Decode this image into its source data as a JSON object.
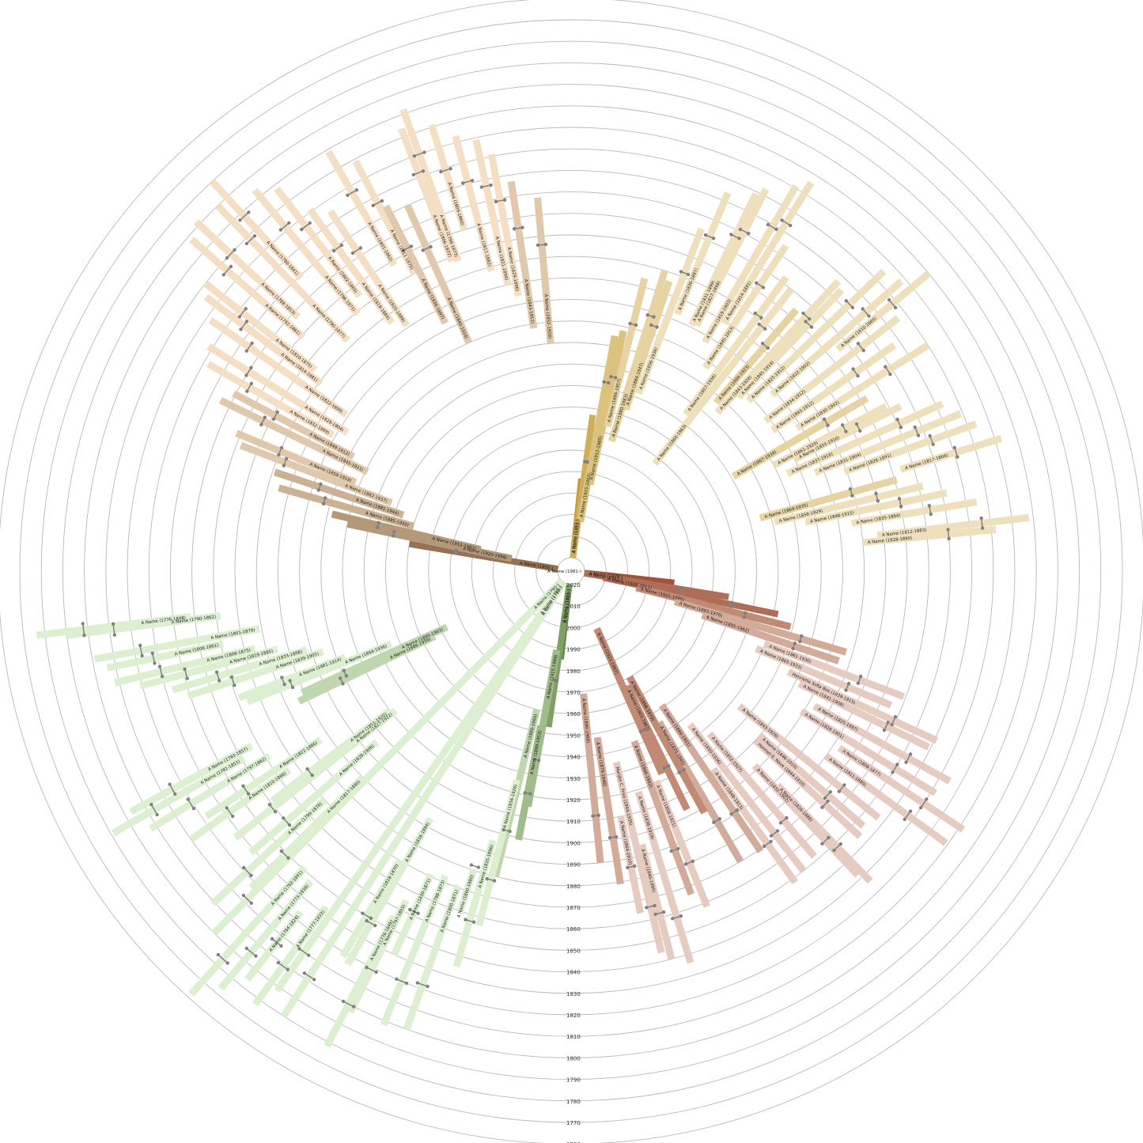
{
  "diagram": {
    "type": "radial-genealogy-fan",
    "center_name": "A Name (1981-)",
    "year_rings": [
      2020,
      2010,
      2000,
      1990,
      1980,
      1970,
      1960,
      1950,
      1940,
      1930,
      1920,
      1910,
      1900,
      1890,
      1880,
      1870,
      1860,
      1850,
      1840,
      1830,
      1820,
      1810,
      1800,
      1790,
      1780,
      1770,
      1760
    ],
    "branches": [
      {
        "group": "brown",
        "colors": [
          "#7d5e43",
          "#957255",
          "#b4987a",
          "#ccb294",
          "#e0c8ac",
          "#f5dfc4"
        ],
        "labels": [
          "A Name (1950-)",
          "A Name (1920-1998)",
          "A Name (1912-1983)",
          "A Name (1885-1950)",
          "A Name (1881-1944)",
          "A Name (1862-1937)",
          "A Name (1858-1918)",
          "A Name (1845-1921)",
          "A Name (1849-1912)",
          "A Name (1832-1899)",
          "A Name (1828-1904)",
          "A Name (1822-1899)",
          "A Name (1814-1881)",
          "A Name (1810-1875)",
          "A Name (1792-1861)",
          "A Name (1788-1853)",
          "A Name (1790-1877)",
          "A Name (1780-1841)",
          "A Name (1796-1871)",
          "A Name (1802-1865)",
          "A Name (1819-1884)",
          "A Name (1825-1889)",
          "A Name (1801-1862)",
          "A Name (1811-1870)",
          "A Name (1836-1897)",
          "A Name (1840-1910)",
          "A Name (1806-1872)",
          "A Name (1798-1873)",
          "A Name (1809-1860)",
          "A Name (1817-1882)",
          "A Name (1821-1890)",
          "A Name (1829-1896)",
          "A Name (1843-1912)",
          "A Name (1852-1920)"
        ]
      },
      {
        "group": "gold",
        "colors": [
          "#c39a38",
          "#cfae5a",
          "#dbc27f",
          "#e6d3a1",
          "#efe0bd"
        ],
        "labels": [
          "A Name (1983-)",
          "A Name (1953-)",
          "A Name (1915-2003)",
          "A Name (1912-1985)",
          "A Name (1886-1957)",
          "A Name (1880-1963)",
          "A Name (1884-1947)",
          "A Name (1856-1938)",
          "A Name (1836-1897)",
          "A Name (1831-1899)",
          "A Name (1827-1898)",
          "A Name (1819-1903)",
          "A Name (1814-1891)",
          "A Name (1845-1913)",
          "A Name (1857-1936)",
          "A Name (1860-1963)",
          "A Name (1866-1923)",
          "A Name (1843-1926)",
          "A Name (1845-1914)",
          "A Name (1825-1912)",
          "A Name (1822-1902)",
          "A Name (1810-1865)",
          "A Name (1834-1912)",
          "A Name (1843-1912)",
          "A Name (1830-1902)",
          "A Name (1867-1939)",
          "A Name (1861-1920)",
          "A Name (1855-1910)",
          "A Name (1837-1916)",
          "A Name (1831-1904)",
          "A Name (1826-1891)",
          "A Name (1817-1866)",
          "A Name (1869-1935)",
          "A Name (1858-1929)",
          "A Name (1848-1915)",
          "A Name (1835-1894)",
          "A Name (1812-1883)",
          "A Name (1828-1890)"
        ]
      },
      {
        "group": "red",
        "colors": [
          "#a0533b",
          "#ae6d57",
          "#c08a75",
          "#d3ab9a",
          "#e6cbc0"
        ],
        "labels": [
          "A Name (1978-)",
          "A Name (1952-)",
          "A Name (1928-2011)",
          "A Name (1921-1995)",
          "A Name (1893-1976)",
          "A Name (1895-1962)",
          "A Name (1861-1930)",
          "A Name (1865-1933)",
          "Henriette Sofia Bos (1839-1915)",
          "A Name (1841-1908)",
          "A Name (1825-1897)",
          "A Name (1828-1901)",
          "A Name (1808-1877)",
          "A Name (1811-1880)",
          "A Name (1843-1926)",
          "A Name (1846-1910)",
          "Hannah E. Nave (1844-1910)",
          "A Name (1826-1888)",
          "A Name (1832-1902)",
          "A Name (1852-1927)",
          "A Name (1850-1936)",
          "A Name (1848-1913)",
          "A Name (1869-1951)",
          "A Name (1870-1945)",
          "A Name (1898-1970)",
          "A Name (1903-1967)",
          "A Name (1923-1997)",
          "A Name (1858-1921)",
          "A Name (1866-1942)",
          "A Name (1836-1919)",
          "A Name (1840-1895)",
          "Marijke C. Friso (1844-1935)",
          "A Name (1864-1910)",
          "A Name (1879-1948)",
          "A Name (1890-1969)"
        ]
      },
      {
        "group": "green",
        "colors": [
          "#5f8a4b",
          "#7ea066",
          "#9fbc8a",
          "#bfd6ae",
          "#dcefd0"
        ],
        "labels": [
          "A Name (1985-)",
          "A Name (1953-)",
          "A Name (1915-1989)",
          "A Name (1899-1953)",
          "A Name (1880-1960)",
          "A Name (1856-1926)",
          "A Name (1835-1896)",
          "A Name (1860-1880)",
          "A Name (1800-1871)",
          "A Name (1798-1873)",
          "A Name (1830-1871)",
          "A Name (1797-1855)",
          "A Name (1778-1846)",
          "A Name (1816-1894)",
          "A Name (1818-1870)",
          "A Name (1780-)",
          "A Name (1788-)",
          "A Name (1777-1833)",
          "A Name (1784-1824)",
          "A Name (1773-1838)",
          "A Name (1762-1841)",
          "A Name (1790-)",
          "A Name (1817-1890)",
          "A Name (1799-1870)",
          "A Name (1828-1906)",
          "A Name (1827-1922)",
          "A Name (1851-1920)",
          "A Name (1810-1866)",
          "A Name (1822-1886)",
          "A Name (1797-1862)",
          "A Name (1781-1851)",
          "A Name (1793-1857)",
          "A Name (1886-1956)",
          "A Name (1889-1963)",
          "A Name (1864-1936)",
          "A Name (1861-1914)",
          "A Name (1839-1905)",
          "A Name (1833-1898)",
          "A Name (1819-1885)",
          "A Name (1808-1875)",
          "A Name (1806-1861)",
          "A Name (1801-1879)",
          "A Name (1790-1862)",
          "A Name (1776-1848)"
        ]
      }
    ]
  }
}
